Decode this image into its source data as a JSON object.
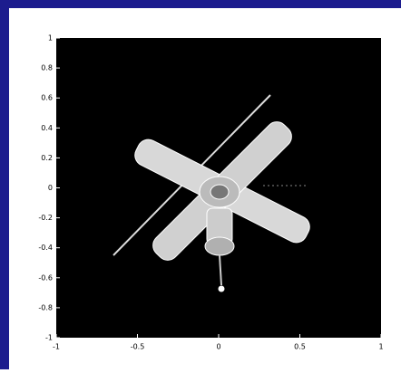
{
  "chart_data": {
    "type": "image",
    "xlim": [
      -1,
      1
    ],
    "ylim": [
      -1,
      1
    ],
    "xticks": [
      -1,
      -0.5,
      0,
      0.5,
      1
    ],
    "yticks": [
      -1,
      -0.8,
      -0.6,
      -0.4,
      -0.2,
      0,
      0.2,
      0.4,
      0.6,
      0.8,
      1
    ]
  }
}
